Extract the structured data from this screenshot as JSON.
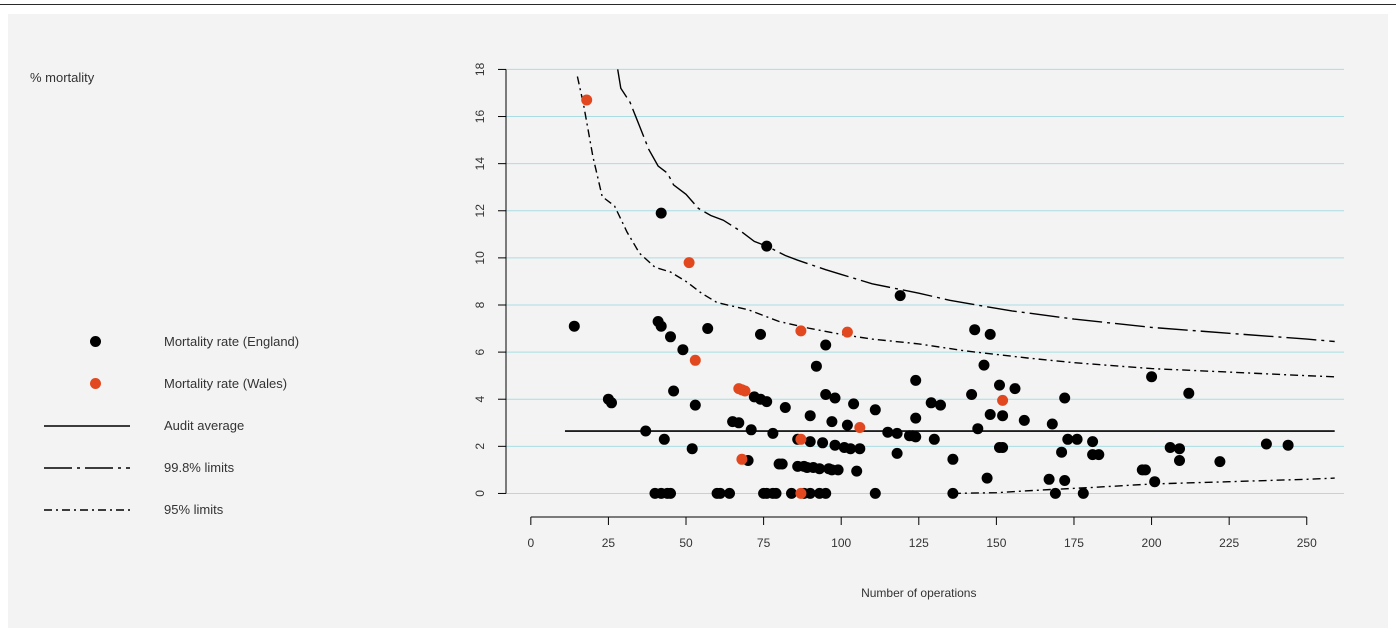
{
  "y_title": "% mortality",
  "legend": [
    {
      "label": "Mortality rate (England)",
      "symbol": "dot",
      "color": "#000000"
    },
    {
      "label": "Mortality rate (Wales)",
      "symbol": "dot",
      "color": "#e2481f"
    },
    {
      "label": "Audit average",
      "symbol": "solid",
      "color": "#000000"
    },
    {
      "label": "99.8% limits",
      "symbol": "longdash-dot",
      "color": "#000000"
    },
    {
      "label": "95% limits",
      "symbol": "dash-dot",
      "color": "#000000"
    }
  ],
  "chart_data": {
    "type": "scatter",
    "title": "",
    "xlabel": "Number of operations",
    "ylabel": "% mortality",
    "xlim": [
      -8,
      262
    ],
    "ylim": [
      -1,
      18.4
    ],
    "x_ticks": [
      0,
      25,
      50,
      75,
      100,
      125,
      150,
      175,
      200,
      225,
      250
    ],
    "y_ticks": [
      0,
      2,
      4,
      6,
      8,
      10,
      12,
      14,
      16,
      18
    ],
    "grid": "horizontal",
    "gridColor": "#a9dde3",
    "audit_average": {
      "name": "Audit average",
      "y": 2.65,
      "x_range": [
        11,
        259
      ]
    },
    "limit_998": {
      "name": "99.8% limits",
      "upper": [
        [
          28,
          18
        ],
        [
          29,
          17.2
        ],
        [
          32,
          16.6
        ],
        [
          35,
          15.6
        ],
        [
          38,
          14.6
        ],
        [
          41,
          13.9
        ],
        [
          44,
          13.6
        ],
        [
          46,
          13.1
        ],
        [
          50,
          12.7
        ],
        [
          54,
          12.1
        ],
        [
          58,
          11.8
        ],
        [
          62,
          11.6
        ],
        [
          68,
          11.1
        ],
        [
          72,
          10.7
        ],
        [
          76,
          10.5
        ],
        [
          82,
          10.1
        ],
        [
          86,
          9.9
        ],
        [
          95,
          9.5
        ],
        [
          100,
          9.3
        ],
        [
          110,
          8.9
        ],
        [
          125,
          8.5
        ],
        [
          135,
          8.2
        ],
        [
          148,
          7.9
        ],
        [
          155,
          7.75
        ],
        [
          175,
          7.4
        ],
        [
          200,
          7.05
        ],
        [
          225,
          6.8
        ],
        [
          250,
          6.55
        ],
        [
          259,
          6.45
        ]
      ],
      "lower": []
    },
    "limit_95": {
      "name": "95% limits",
      "upper": [
        [
          15,
          17.7
        ],
        [
          17,
          16.5
        ],
        [
          20,
          14.3
        ],
        [
          23,
          12.6
        ],
        [
          27,
          12.2
        ],
        [
          31,
          11.1
        ],
        [
          35,
          10.2
        ],
        [
          40,
          9.6
        ],
        [
          45,
          9.4
        ],
        [
          50,
          9.0
        ],
        [
          55,
          8.5
        ],
        [
          60,
          8.1
        ],
        [
          70,
          7.8
        ],
        [
          80,
          7.3
        ],
        [
          90,
          7.0
        ],
        [
          100,
          6.75
        ],
        [
          110,
          6.55
        ],
        [
          125,
          6.35
        ],
        [
          140,
          6.05
        ],
        [
          160,
          5.75
        ],
        [
          175,
          5.55
        ],
        [
          200,
          5.3
        ],
        [
          225,
          5.15
        ],
        [
          250,
          5.0
        ],
        [
          259,
          4.95
        ]
      ],
      "lower": [
        [
          136,
          0
        ],
        [
          150,
          0.03
        ],
        [
          165,
          0.15
        ],
        [
          180,
          0.25
        ],
        [
          200,
          0.4
        ],
        [
          225,
          0.5
        ],
        [
          250,
          0.6
        ],
        [
          259,
          0.65
        ]
      ]
    },
    "series": [
      {
        "name": "Mortality rate (England)",
        "color": "#000000",
        "points": [
          [
            14,
            7.1
          ],
          [
            25,
            4.0
          ],
          [
            26,
            3.85
          ],
          [
            37,
            2.65
          ],
          [
            40,
            0
          ],
          [
            42,
            0
          ],
          [
            44,
            0
          ],
          [
            45,
            0
          ],
          [
            41,
            7.3
          ],
          [
            42,
            7.1
          ],
          [
            42,
            11.9
          ],
          [
            43,
            2.3
          ],
          [
            45,
            6.65
          ],
          [
            46,
            4.35
          ],
          [
            49,
            6.1
          ],
          [
            52,
            1.9
          ],
          [
            53,
            3.75
          ],
          [
            57,
            7.0
          ],
          [
            60,
            0
          ],
          [
            61,
            0
          ],
          [
            64,
            0
          ],
          [
            65,
            3.05
          ],
          [
            67,
            3.0
          ],
          [
            70,
            1.4
          ],
          [
            71,
            2.7
          ],
          [
            72,
            4.1
          ],
          [
            74,
            6.75
          ],
          [
            74,
            4.0
          ],
          [
            75,
            0
          ],
          [
            76,
            3.9
          ],
          [
            76,
            0
          ],
          [
            76,
            10.5
          ],
          [
            78,
            2.55
          ],
          [
            78,
            0
          ],
          [
            79,
            0
          ],
          [
            80,
            1.25
          ],
          [
            81,
            1.25
          ],
          [
            82,
            3.65
          ],
          [
            84,
            0
          ],
          [
            86,
            1.15
          ],
          [
            86,
            2.3
          ],
          [
            88,
            1.15
          ],
          [
            88,
            0
          ],
          [
            89,
            1.1
          ],
          [
            90,
            0
          ],
          [
            90,
            3.3
          ],
          [
            90,
            2.2
          ],
          [
            91,
            1.1
          ],
          [
            92,
            5.4
          ],
          [
            93,
            0
          ],
          [
            93,
            1.05
          ],
          [
            94,
            2.15
          ],
          [
            95,
            0
          ],
          [
            95,
            4.2
          ],
          [
            95,
            6.3
          ],
          [
            96,
            1.05
          ],
          [
            97,
            1.0
          ],
          [
            97,
            3.05
          ],
          [
            98,
            4.05
          ],
          [
            98,
            2.05
          ],
          [
            99,
            1.0
          ],
          [
            101,
            1.95
          ],
          [
            102,
            2.9
          ],
          [
            103,
            1.9
          ],
          [
            104,
            3.8
          ],
          [
            105,
            0.95
          ],
          [
            106,
            1.9
          ],
          [
            111,
            3.55
          ],
          [
            111,
            0
          ],
          [
            115,
            2.6
          ],
          [
            118,
            1.7
          ],
          [
            118,
            2.55
          ],
          [
            119,
            8.4
          ],
          [
            122,
            2.45
          ],
          [
            123,
            2.45
          ],
          [
            124,
            4.8
          ],
          [
            124,
            2.4
          ],
          [
            124,
            3.2
          ],
          [
            129,
            3.85
          ],
          [
            130,
            2.3
          ],
          [
            132,
            3.75
          ],
          [
            136,
            1.45
          ],
          [
            136,
            0
          ],
          [
            142,
            4.2
          ],
          [
            143,
            6.95
          ],
          [
            144,
            2.75
          ],
          [
            146,
            5.45
          ],
          [
            147,
            0.65
          ],
          [
            148,
            3.35
          ],
          [
            148,
            6.75
          ],
          [
            151,
            4.6
          ],
          [
            151,
            1.95
          ],
          [
            152,
            1.95
          ],
          [
            152,
            3.3
          ],
          [
            156,
            4.45
          ],
          [
            159,
            3.1
          ],
          [
            167,
            0.6
          ],
          [
            168,
            2.95
          ],
          [
            169,
            0
          ],
          [
            171,
            1.75
          ],
          [
            172,
            4.05
          ],
          [
            172,
            0.55
          ],
          [
            173,
            2.3
          ],
          [
            176,
            2.3
          ],
          [
            178,
            0
          ],
          [
            181,
            2.2
          ],
          [
            181,
            1.65
          ],
          [
            183,
            1.65
          ],
          [
            197,
            1.0
          ],
          [
            198,
            1.0
          ],
          [
            200,
            4.95
          ],
          [
            201,
            0.5
          ],
          [
            206,
            1.95
          ],
          [
            209,
            1.4
          ],
          [
            209,
            1.9
          ],
          [
            212,
            4.25
          ],
          [
            222,
            1.35
          ],
          [
            237,
            2.1
          ],
          [
            244,
            2.05
          ]
        ]
      },
      {
        "name": "Mortality rate (Wales)",
        "color": "#e2481f",
        "points": [
          [
            18,
            16.7
          ],
          [
            51,
            9.8
          ],
          [
            53,
            5.65
          ],
          [
            67,
            4.45
          ],
          [
            68,
            4.4
          ],
          [
            69,
            4.35
          ],
          [
            68,
            1.45
          ],
          [
            87,
            6.9
          ],
          [
            87,
            2.3
          ],
          [
            87,
            0
          ],
          [
            102,
            6.85
          ],
          [
            106,
            2.8
          ],
          [
            152,
            3.95
          ]
        ]
      }
    ]
  }
}
